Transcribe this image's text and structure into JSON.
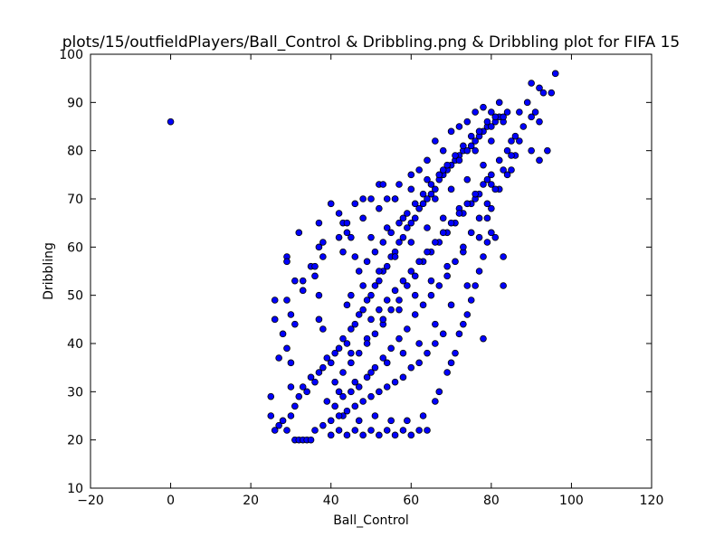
{
  "chart_data": {
    "type": "scatter",
    "title": "plots/15/outfieldPlayers/Ball_Control & Dribbling.png & Dribbling plot for FIFA 15",
    "xlabel": "Ball_Control",
    "ylabel": "Dribbling",
    "xlim": [
      -20,
      120
    ],
    "ylim": [
      10,
      100
    ],
    "xticks": [
      "−20",
      "0",
      "20",
      "40",
      "60",
      "80",
      "100",
      "120"
    ],
    "yticks": [
      "10",
      "20",
      "30",
      "40",
      "50",
      "60",
      "70",
      "80",
      "90",
      "100"
    ],
    "grid": false,
    "legend": "none",
    "marker_color": "#0000ff",
    "marker_edge": "#000000",
    "series": [
      {
        "points": [
          [
            0,
            86
          ],
          [
            96,
            96
          ],
          [
            90,
            94
          ],
          [
            92,
            93
          ],
          [
            91,
            88
          ],
          [
            93,
            92
          ],
          [
            95,
            92
          ],
          [
            89,
            90
          ],
          [
            90,
            87
          ],
          [
            92,
            86
          ],
          [
            94,
            80
          ],
          [
            90,
            80
          ],
          [
            92,
            78
          ],
          [
            85,
            76
          ],
          [
            86,
            79
          ],
          [
            87,
            88
          ],
          [
            88,
            85
          ],
          [
            78,
            41
          ],
          [
            83,
            52
          ],
          [
            83,
            58
          ],
          [
            81,
            62
          ],
          [
            79,
            66
          ],
          [
            80,
            68
          ],
          [
            82,
            72
          ],
          [
            84,
            75
          ],
          [
            85,
            82
          ],
          [
            25,
            25
          ],
          [
            25,
            29
          ],
          [
            26,
            49
          ],
          [
            26,
            45
          ],
          [
            27,
            37
          ],
          [
            28,
            42
          ],
          [
            29,
            49
          ],
          [
            29,
            58
          ],
          [
            29,
            57
          ],
          [
            29,
            39
          ],
          [
            30,
            36
          ],
          [
            30,
            31
          ],
          [
            31,
            20
          ],
          [
            32,
            20
          ],
          [
            33,
            20
          ],
          [
            34,
            20
          ],
          [
            35,
            20
          ],
          [
            32,
            63
          ],
          [
            33,
            53
          ],
          [
            30,
            46
          ],
          [
            31,
            44
          ],
          [
            31,
            53
          ],
          [
            33,
            51
          ],
          [
            35,
            56
          ],
          [
            36,
            56
          ],
          [
            37,
            50
          ],
          [
            37,
            45
          ],
          [
            38,
            43
          ],
          [
            36,
            54
          ],
          [
            37,
            60
          ],
          [
            37,
            65
          ],
          [
            38,
            61
          ],
          [
            38,
            58
          ],
          [
            40,
            69
          ],
          [
            43,
            65
          ],
          [
            44,
            65
          ],
          [
            44,
            63
          ],
          [
            45,
            62
          ],
          [
            43,
            59
          ],
          [
            42,
            62
          ],
          [
            42,
            67
          ],
          [
            46,
            69
          ],
          [
            48,
            70
          ],
          [
            50,
            70
          ],
          [
            52,
            73
          ],
          [
            53,
            73
          ],
          [
            54,
            70
          ],
          [
            56,
            70
          ],
          [
            57,
            73
          ],
          [
            60,
            75
          ],
          [
            62,
            76
          ],
          [
            64,
            78
          ],
          [
            66,
            82
          ],
          [
            68,
            80
          ],
          [
            70,
            84
          ],
          [
            72,
            85
          ],
          [
            74,
            86
          ],
          [
            76,
            88
          ],
          [
            78,
            89
          ],
          [
            80,
            88
          ],
          [
            82,
            90
          ],
          [
            83,
            86
          ],
          [
            84,
            88
          ],
          [
            26,
            22
          ],
          [
            27,
            23
          ],
          [
            28,
            24
          ],
          [
            29,
            22
          ],
          [
            30,
            25
          ],
          [
            31,
            27
          ],
          [
            32,
            29
          ],
          [
            33,
            31
          ],
          [
            34,
            30
          ],
          [
            35,
            33
          ],
          [
            36,
            32
          ],
          [
            37,
            34
          ],
          [
            38,
            35
          ],
          [
            39,
            37
          ],
          [
            40,
            36
          ],
          [
            41,
            38
          ],
          [
            42,
            39
          ],
          [
            43,
            41
          ],
          [
            44,
            40
          ],
          [
            45,
            43
          ],
          [
            46,
            44
          ],
          [
            47,
            46
          ],
          [
            48,
            47
          ],
          [
            49,
            49
          ],
          [
            50,
            50
          ],
          [
            51,
            52
          ],
          [
            52,
            53
          ],
          [
            53,
            55
          ],
          [
            54,
            56
          ],
          [
            55,
            58
          ],
          [
            56,
            59
          ],
          [
            57,
            61
          ],
          [
            58,
            62
          ],
          [
            59,
            64
          ],
          [
            60,
            65
          ],
          [
            61,
            66
          ],
          [
            62,
            68
          ],
          [
            63,
            69
          ],
          [
            64,
            70
          ],
          [
            65,
            71
          ],
          [
            66,
            72
          ],
          [
            67,
            74
          ],
          [
            68,
            75
          ],
          [
            69,
            76
          ],
          [
            70,
            77
          ],
          [
            71,
            78
          ],
          [
            72,
            79
          ],
          [
            73,
            80
          ],
          [
            74,
            80
          ],
          [
            75,
            81
          ],
          [
            76,
            82
          ],
          [
            77,
            83
          ],
          [
            78,
            84
          ],
          [
            79,
            85
          ],
          [
            80,
            85
          ],
          [
            81,
            86
          ],
          [
            82,
            87
          ],
          [
            83,
            87
          ],
          [
            40,
            21
          ],
          [
            42,
            22
          ],
          [
            44,
            21
          ],
          [
            46,
            22
          ],
          [
            48,
            21
          ],
          [
            50,
            22
          ],
          [
            52,
            21
          ],
          [
            54,
            22
          ],
          [
            56,
            21
          ],
          [
            58,
            22
          ],
          [
            60,
            21
          ],
          [
            62,
            22
          ],
          [
            64,
            22
          ],
          [
            43,
            25
          ],
          [
            47,
            24
          ],
          [
            51,
            25
          ],
          [
            55,
            24
          ],
          [
            59,
            24
          ],
          [
            63,
            25
          ],
          [
            66,
            28
          ],
          [
            67,
            30
          ],
          [
            69,
            34
          ],
          [
            70,
            36
          ],
          [
            71,
            38
          ],
          [
            72,
            42
          ],
          [
            73,
            44
          ],
          [
            74,
            46
          ],
          [
            75,
            49
          ],
          [
            76,
            52
          ],
          [
            77,
            55
          ],
          [
            78,
            58
          ],
          [
            79,
            61
          ],
          [
            80,
            63
          ],
          [
            42,
            30
          ],
          [
            46,
            32
          ],
          [
            50,
            34
          ],
          [
            54,
            36
          ],
          [
            58,
            38
          ],
          [
            62,
            40
          ],
          [
            66,
            44
          ],
          [
            70,
            48
          ],
          [
            74,
            52
          ],
          [
            45,
            38
          ],
          [
            49,
            41
          ],
          [
            53,
            44
          ],
          [
            57,
            47
          ],
          [
            61,
            50
          ],
          [
            65,
            53
          ],
          [
            69,
            56
          ],
          [
            73,
            59
          ],
          [
            77,
            62
          ],
          [
            44,
            48
          ],
          [
            48,
            52
          ],
          [
            52,
            55
          ],
          [
            56,
            58
          ],
          [
            60,
            61
          ],
          [
            64,
            64
          ],
          [
            68,
            66
          ],
          [
            72,
            68
          ],
          [
            76,
            70
          ],
          [
            80,
            73
          ],
          [
            46,
            58
          ],
          [
            50,
            62
          ],
          [
            54,
            64
          ],
          [
            58,
            66
          ],
          [
            62,
            68
          ],
          [
            66,
            70
          ],
          [
            70,
            72
          ],
          [
            74,
            74
          ],
          [
            78,
            77
          ],
          [
            48,
            66
          ],
          [
            52,
            68
          ],
          [
            56,
            70
          ],
          [
            60,
            72
          ],
          [
            64,
            74
          ],
          [
            68,
            76
          ],
          [
            72,
            78
          ],
          [
            76,
            80
          ],
          [
            80,
            82
          ],
          [
            41,
            32
          ],
          [
            43,
            34
          ],
          [
            45,
            36
          ],
          [
            47,
            38
          ],
          [
            49,
            40
          ],
          [
            51,
            42
          ],
          [
            53,
            45
          ],
          [
            55,
            47
          ],
          [
            57,
            49
          ],
          [
            59,
            52
          ],
          [
            61,
            54
          ],
          [
            63,
            57
          ],
          [
            65,
            59
          ],
          [
            67,
            61
          ],
          [
            69,
            63
          ],
          [
            71,
            65
          ],
          [
            73,
            67
          ],
          [
            75,
            69
          ],
          [
            77,
            71
          ],
          [
            79,
            74
          ],
          [
            39,
            28
          ],
          [
            41,
            27
          ],
          [
            43,
            29
          ],
          [
            45,
            30
          ],
          [
            47,
            31
          ],
          [
            49,
            33
          ],
          [
            51,
            35
          ],
          [
            53,
            37
          ],
          [
            55,
            39
          ],
          [
            57,
            41
          ],
          [
            59,
            43
          ],
          [
            61,
            46
          ],
          [
            63,
            48
          ],
          [
            65,
            50
          ],
          [
            67,
            52
          ],
          [
            69,
            54
          ],
          [
            71,
            57
          ],
          [
            73,
            60
          ],
          [
            75,
            63
          ],
          [
            77,
            66
          ],
          [
            79,
            69
          ],
          [
            81,
            72
          ],
          [
            83,
            76
          ],
          [
            85,
            79
          ],
          [
            87,
            82
          ],
          [
            36,
            22
          ],
          [
            38,
            23
          ],
          [
            40,
            24
          ],
          [
            42,
            25
          ],
          [
            44,
            26
          ],
          [
            46,
            27
          ],
          [
            48,
            28
          ],
          [
            50,
            29
          ],
          [
            52,
            30
          ],
          [
            54,
            31
          ],
          [
            56,
            32
          ],
          [
            58,
            33
          ],
          [
            60,
            35
          ],
          [
            62,
            36
          ],
          [
            64,
            38
          ],
          [
            66,
            40
          ],
          [
            68,
            42
          ],
          [
            45,
            50
          ],
          [
            47,
            55
          ],
          [
            49,
            57
          ],
          [
            51,
            59
          ],
          [
            53,
            61
          ],
          [
            55,
            63
          ],
          [
            57,
            65
          ],
          [
            59,
            67
          ],
          [
            61,
            69
          ],
          [
            63,
            71
          ],
          [
            65,
            73
          ],
          [
            67,
            75
          ],
          [
            69,
            77
          ],
          [
            71,
            79
          ],
          [
            73,
            81
          ],
          [
            75,
            83
          ],
          [
            77,
            84
          ],
          [
            79,
            86
          ],
          [
            81,
            87
          ],
          [
            50,
            45
          ],
          [
            52,
            47
          ],
          [
            54,
            49
          ],
          [
            56,
            51
          ],
          [
            58,
            53
          ],
          [
            60,
            55
          ],
          [
            62,
            57
          ],
          [
            64,
            59
          ],
          [
            66,
            61
          ],
          [
            68,
            63
          ],
          [
            70,
            65
          ],
          [
            72,
            67
          ],
          [
            74,
            69
          ],
          [
            76,
            71
          ],
          [
            78,
            73
          ],
          [
            80,
            75
          ],
          [
            82,
            78
          ],
          [
            84,
            80
          ],
          [
            86,
            83
          ]
        ]
      }
    ]
  }
}
